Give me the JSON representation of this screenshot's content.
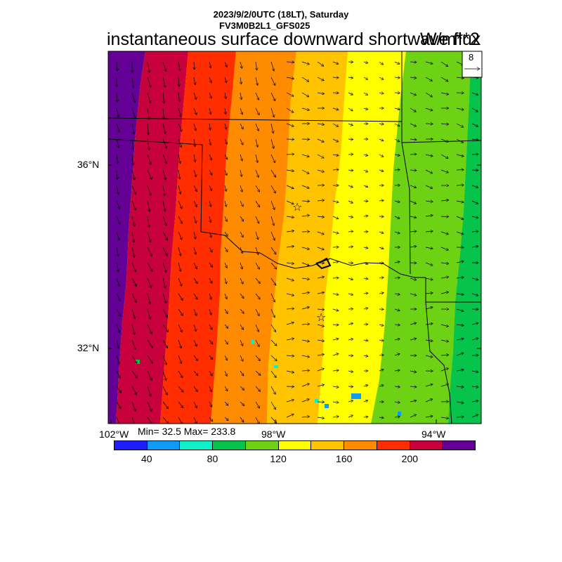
{
  "header": {
    "line1": "2023/9/2/0UTC (18LT), Saturday",
    "line2": "FV3M0B2L1_GFS025",
    "title": "instantaneous surface downward shortwave flux",
    "units": "W/m**2"
  },
  "vector_key": {
    "value": "8"
  },
  "axes": {
    "lat_labels": [
      "36°N",
      "32°N"
    ],
    "lon_labels": [
      "102°W",
      "98°W",
      "94°W"
    ]
  },
  "stats": {
    "text": "Min= 32.5 Max= 233.8"
  },
  "colorbar": {
    "colors": [
      "#1e1efa",
      "#0f9bf5",
      "#0ff0c8",
      "#05c34b",
      "#6ed214",
      "#ffff00",
      "#ffc300",
      "#ff8c00",
      "#ff2d00",
      "#c8003c",
      "#640096"
    ],
    "labels": [
      "40",
      "80",
      "120",
      "160",
      "200"
    ],
    "label_boundaries": [
      1,
      3,
      5,
      7,
      9
    ]
  },
  "field_bands": [
    "#640096",
    "#c8003c",
    "#ff2d00",
    "#ff8c00",
    "#ffc300",
    "#ffff00",
    "#6ed214",
    "#05c34b"
  ],
  "markers": {
    "symbol": "☆",
    "count": 2
  }
}
